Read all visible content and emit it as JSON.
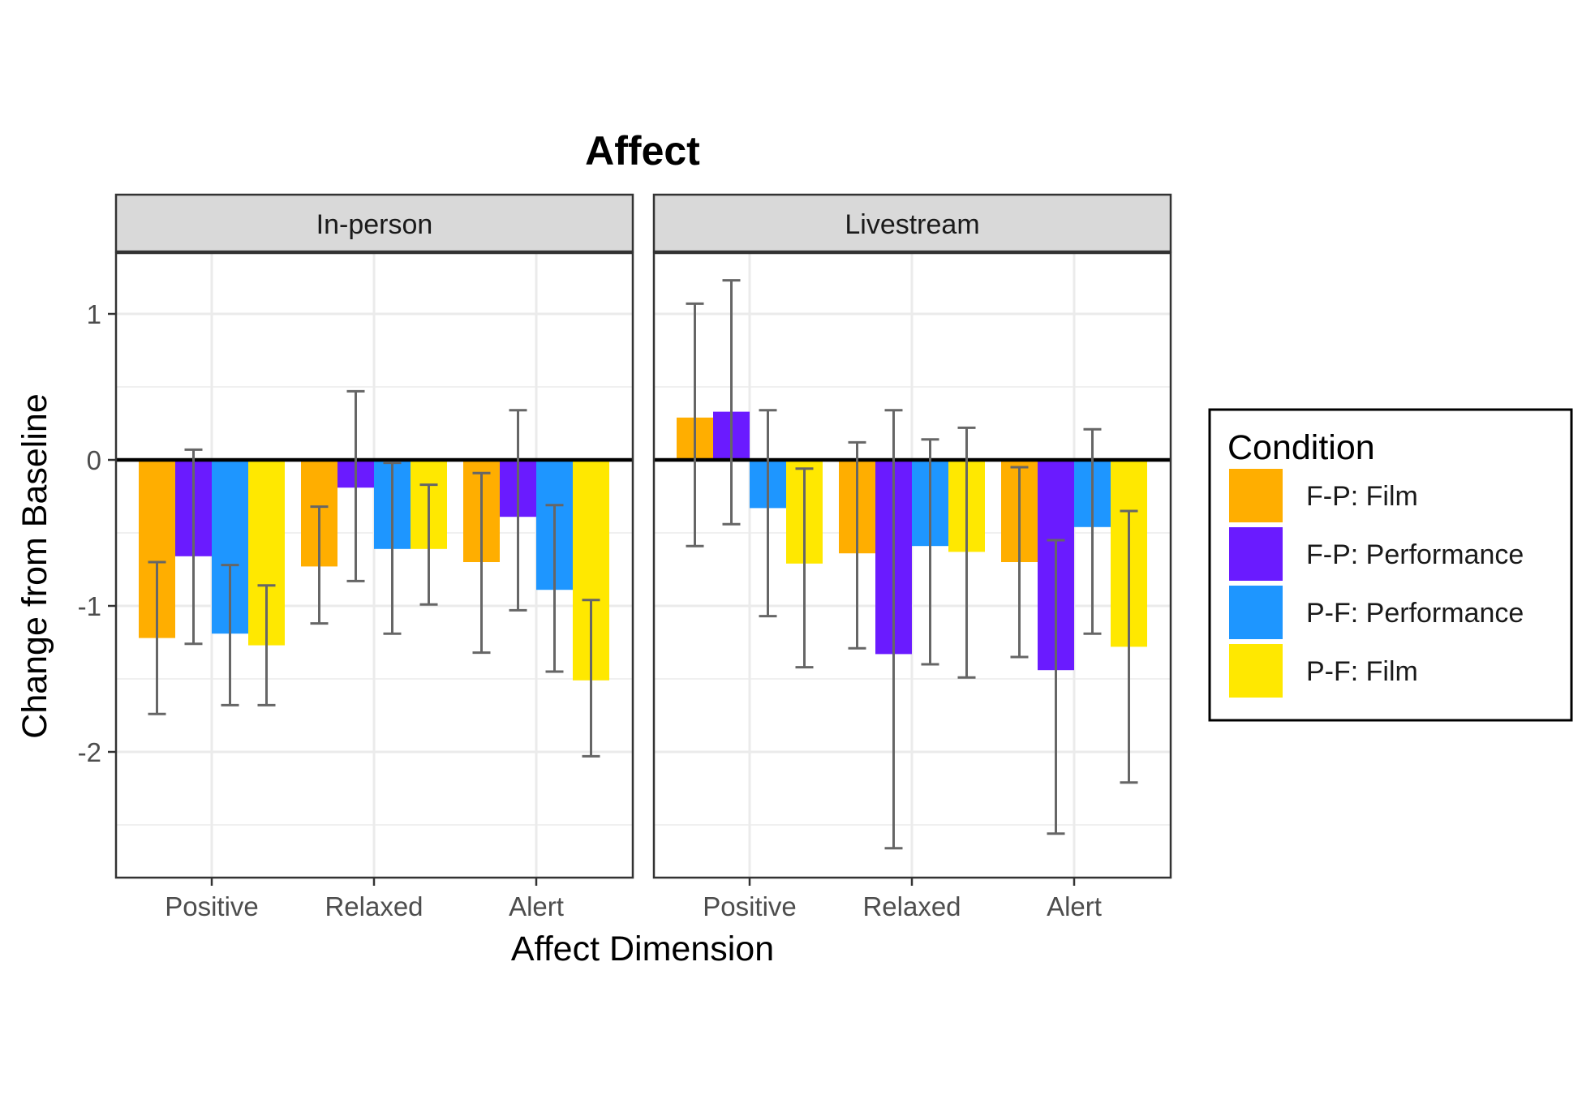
{
  "chart_data": {
    "type": "bar",
    "title": "Affect",
    "xlabel": "Affect Dimension",
    "ylabel": "Change from Baseline",
    "ylim": [
      -2.85,
      1.4
    ],
    "yticks": [
      1,
      0,
      -1,
      -2
    ],
    "ytick_labels": [
      "1",
      "0",
      "-1",
      "-2"
    ],
    "grid": true,
    "legend_position": "right",
    "legend_title": "Condition",
    "categories": [
      "Positive",
      "Relaxed",
      "Alert"
    ],
    "series_names": [
      "F-P: Film",
      "F-P: Performance",
      "P-F: Performance",
      "P-F: Film"
    ],
    "colors": [
      "#FFAE00",
      "#6A1BFF",
      "#1E96FF",
      "#FFE800"
    ],
    "panels": [
      {
        "name": "In-person",
        "series": [
          {
            "name": "F-P: Film",
            "values": [
              -1.22,
              -0.73,
              -0.7
            ],
            "err_low": [
              -1.74,
              -1.12,
              -1.32
            ],
            "err_high": [
              -0.7,
              -0.32,
              -0.09
            ]
          },
          {
            "name": "F-P: Performance",
            "values": [
              -0.66,
              -0.19,
              -0.39
            ],
            "err_low": [
              -1.26,
              -0.83,
              -1.03
            ],
            "err_high": [
              0.07,
              0.47,
              0.34
            ]
          },
          {
            "name": "P-F: Performance",
            "values": [
              -1.19,
              -0.61,
              -0.89
            ],
            "err_low": [
              -1.68,
              -1.19,
              -1.45
            ],
            "err_high": [
              -0.72,
              -0.02,
              -0.31
            ]
          },
          {
            "name": "P-F: Film",
            "values": [
              -1.27,
              -0.61,
              -1.51
            ],
            "err_low": [
              -1.68,
              -0.99,
              -2.03
            ],
            "err_high": [
              -0.86,
              -0.17,
              -0.96
            ]
          }
        ]
      },
      {
        "name": "Livestream",
        "series": [
          {
            "name": "F-P: Film",
            "values": [
              0.29,
              -0.64,
              -0.7
            ],
            "err_low": [
              -0.59,
              -1.29,
              -1.35
            ],
            "err_high": [
              1.07,
              0.12,
              -0.05
            ]
          },
          {
            "name": "F-P: Performance",
            "values": [
              0.33,
              -1.33,
              -1.44
            ],
            "err_low": [
              -0.44,
              -2.66,
              -2.56
            ],
            "err_high": [
              1.23,
              0.34,
              -0.55
            ]
          },
          {
            "name": "P-F: Performance",
            "values": [
              -0.33,
              -0.59,
              -0.46
            ],
            "err_low": [
              -1.07,
              -1.4,
              -1.19
            ],
            "err_high": [
              0.34,
              0.14,
              0.21
            ]
          },
          {
            "name": "P-F: Film",
            "values": [
              -0.71,
              -0.63,
              -1.28
            ],
            "err_low": [
              -1.42,
              -1.49,
              -2.21
            ],
            "err_high": [
              -0.06,
              0.22,
              -0.35
            ]
          }
        ]
      }
    ]
  }
}
